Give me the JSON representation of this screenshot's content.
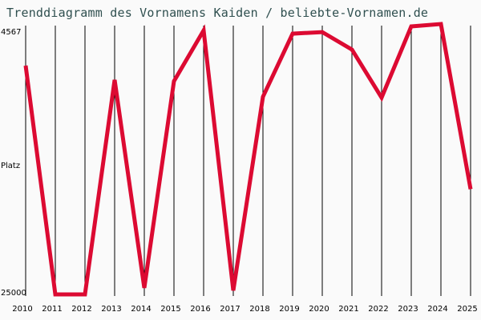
{
  "chart_data": {
    "type": "line",
    "title": "Trenddiagramm des Vornamens Kaiden / beliebte-Vornamen.de",
    "xlabel": "",
    "ylabel": "Platz",
    "y_inverted": true,
    "ylim": [
      4567,
      25000
    ],
    "y_tick_labels": [
      "4567",
      "25000"
    ],
    "categories": [
      "2010",
      "2011",
      "2012",
      "2013",
      "2014",
      "2015",
      "2016",
      "2017",
      "2018",
      "2019",
      "2020",
      "2021",
      "2022",
      "2023",
      "2024",
      "2025"
    ],
    "series": [
      {
        "name": "Kaiden",
        "color": "#dc0a32",
        "values": [
          7400,
          25000,
          25000,
          8500,
          24500,
          8600,
          4690,
          24700,
          9800,
          4940,
          4820,
          6170,
          9860,
          4380,
          4200,
          16900
        ]
      }
    ],
    "grid": {
      "vertical": true,
      "horizontal": false
    },
    "legend": null
  },
  "labels": {
    "title": "Trenddiagramm des Vornamens Kaiden / beliebte-Vornamen.de",
    "y_top": "4567",
    "y_bottom": "25000",
    "y_axis": "Platz"
  }
}
